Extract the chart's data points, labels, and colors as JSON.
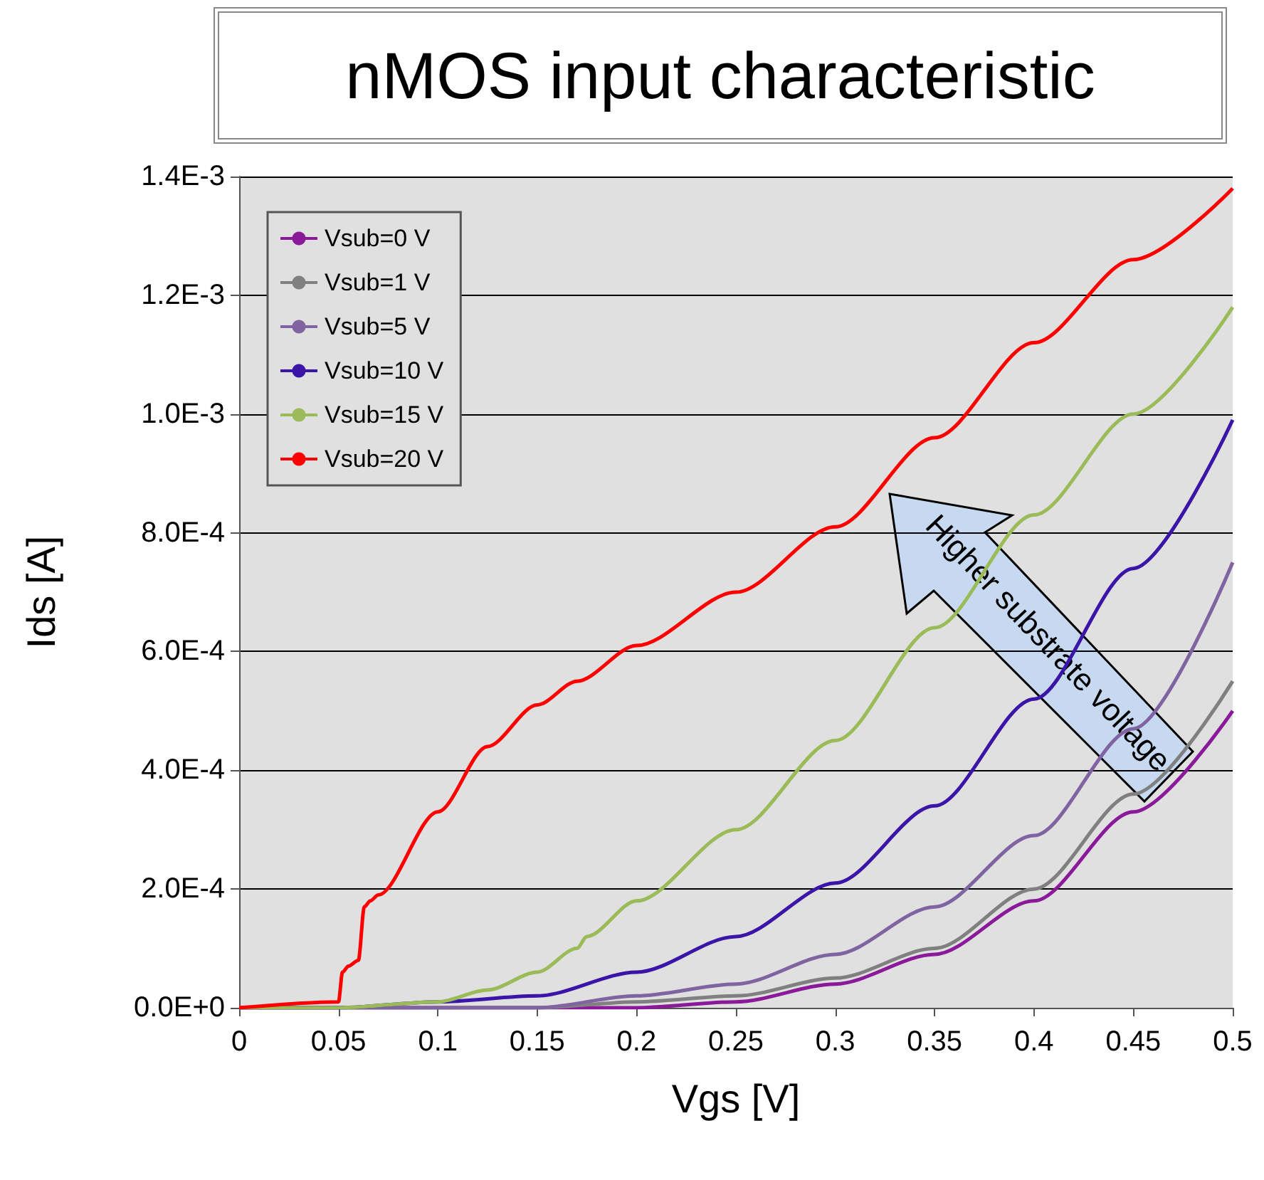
{
  "chart_data": {
    "type": "line",
    "title": "nMOS input characteristic",
    "xlabel": "Vgs [V]",
    "ylabel": "Ids [A]",
    "annotations": [
      "Higher substrate voltage"
    ],
    "xlim": [
      0,
      0.5
    ],
    "xticks": [
      0,
      0.05,
      0.1,
      0.15,
      0.2,
      0.25,
      0.3,
      0.35,
      0.4,
      0.45,
      0.5
    ],
    "ylim": [
      0,
      0.0014
    ],
    "yticks": [
      {
        "value": 0,
        "label": "0.0E+0"
      },
      {
        "value": 0.0002,
        "label": "2.0E-4"
      },
      {
        "value": 0.0004,
        "label": "4.0E-4"
      },
      {
        "value": 0.0006,
        "label": "6.0E-4"
      },
      {
        "value": 0.0008,
        "label": "8.0E-4"
      },
      {
        "value": 0.001,
        "label": "1.0E-3"
      },
      {
        "value": 0.0012,
        "label": "1.2E-3"
      },
      {
        "value": 0.0014,
        "label": "1.4E-3"
      }
    ],
    "grid": "y",
    "legend": "top left",
    "marker": "none",
    "line_style": "solid",
    "series": [
      {
        "name": "Vsub=0 V",
        "color": "#8b1a9b",
        "x": [
          0,
          0.1,
          0.15,
          0.2,
          0.25,
          0.3,
          0.35,
          0.4,
          0.45,
          0.5
        ],
        "values": [
          0,
          0,
          0,
          0,
          1e-05,
          4e-05,
          9e-05,
          0.00018,
          0.00033,
          0.0005
        ]
      },
      {
        "name": "Vsub=1 V",
        "color": "#808080",
        "x": [
          0,
          0.1,
          0.15,
          0.2,
          0.25,
          0.3,
          0.35,
          0.4,
          0.45,
          0.5
        ],
        "values": [
          0,
          0,
          0,
          1e-05,
          2e-05,
          5e-05,
          0.0001,
          0.0002,
          0.00036,
          0.00055
        ]
      },
      {
        "name": "Vsub=5 V",
        "color": "#8064a2",
        "x": [
          0,
          0.1,
          0.15,
          0.2,
          0.25,
          0.3,
          0.35,
          0.4,
          0.45,
          0.5
        ],
        "values": [
          0,
          0,
          0,
          2e-05,
          4e-05,
          9e-05,
          0.00017,
          0.00029,
          0.00047,
          0.00075
        ]
      },
      {
        "name": "Vsub=10 V",
        "color": "#3b14a8",
        "x": [
          0,
          0.05,
          0.1,
          0.15,
          0.2,
          0.25,
          0.3,
          0.35,
          0.4,
          0.45,
          0.5
        ],
        "values": [
          0,
          0,
          1e-05,
          2e-05,
          6e-05,
          0.00012,
          0.00021,
          0.00034,
          0.00052,
          0.00074,
          0.00099
        ]
      },
      {
        "name": "Vsub=15 V",
        "color": "#9bbb59",
        "x": [
          0,
          0.05,
          0.1,
          0.125,
          0.15,
          0.17,
          0.175,
          0.2,
          0.25,
          0.3,
          0.35,
          0.4,
          0.45,
          0.5
        ],
        "values": [
          0,
          0,
          1e-05,
          3e-05,
          6e-05,
          0.0001,
          0.00012,
          0.00018,
          0.0003,
          0.00045,
          0.00064,
          0.00083,
          0.001,
          0.00118
        ]
      },
      {
        "name": "Vsub=20 V",
        "color": "#ff0000",
        "x": [
          0,
          0.05,
          0.052,
          0.055,
          0.06,
          0.063,
          0.066,
          0.07,
          0.1,
          0.125,
          0.15,
          0.17,
          0.2,
          0.25,
          0.3,
          0.35,
          0.4,
          0.45,
          0.5
        ],
        "values": [
          0,
          1e-05,
          6e-05,
          7e-05,
          8e-05,
          0.00017,
          0.00018,
          0.00019,
          0.00033,
          0.00044,
          0.00051,
          0.00055,
          0.00061,
          0.0007,
          0.00081,
          0.00096,
          0.00112,
          0.00126,
          0.00138
        ]
      }
    ]
  }
}
